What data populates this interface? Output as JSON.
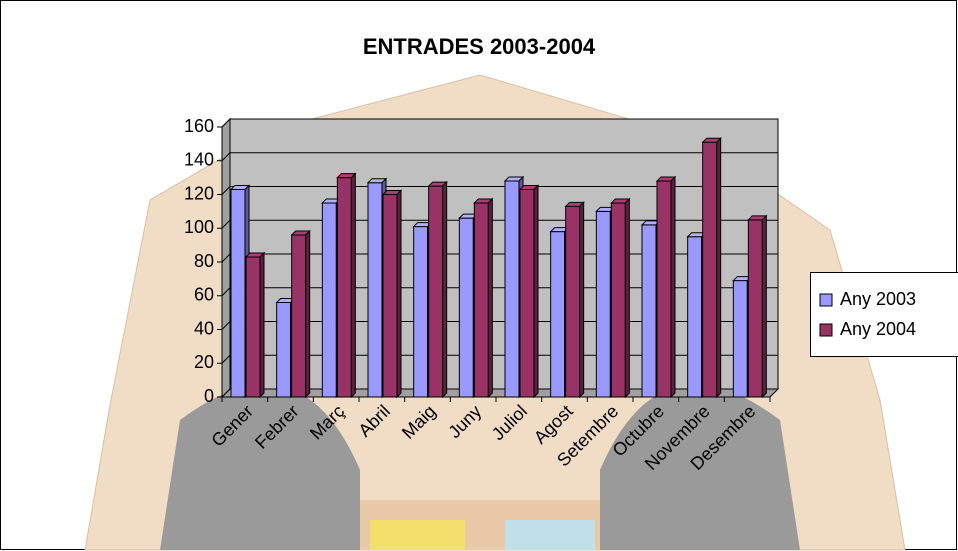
{
  "chart_data": {
    "type": "bar3d",
    "title": "ENTRADES 2003-2004",
    "categories": [
      "Gener",
      "Febrer",
      "Març",
      "Abril",
      "Maig",
      "Juny",
      "Juliol",
      "Agost",
      "Setembre",
      "Octubre",
      "Novembre",
      "Desembre"
    ],
    "series": [
      {
        "name": "Any 2003",
        "color": "#9999ff",
        "values": [
          123,
          56,
          115,
          127,
          101,
          106,
          128,
          98,
          110,
          102,
          95,
          69
        ]
      },
      {
        "name": "Any 2004",
        "color": "#993366",
        "values": [
          83,
          96,
          130,
          120,
          125,
          115,
          123,
          113,
          115,
          128,
          151,
          105
        ]
      }
    ],
    "ylim": [
      0,
      160
    ],
    "yticks": [
      0,
      20,
      40,
      60,
      80,
      100,
      120,
      140,
      160
    ],
    "grid": true,
    "legend": "right"
  }
}
